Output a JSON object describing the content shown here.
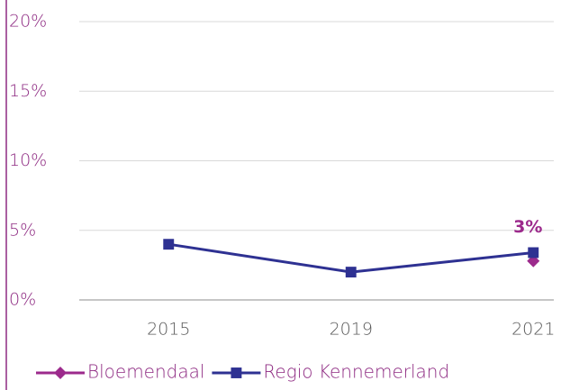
{
  "chart_data": {
    "type": "line",
    "categories": [
      "2015",
      "2019",
      "2021"
    ],
    "series": [
      {
        "name": "Bloemendaal",
        "color": "#9c2a8c",
        "marker": "diamond",
        "values": [
          null,
          null,
          2.8
        ],
        "value_labels": [
          null,
          null,
          "3%"
        ]
      },
      {
        "name": "Regio Kennemerland",
        "color": "#2e3192",
        "marker": "square",
        "values": [
          4,
          2,
          3.4
        ]
      }
    ],
    "ylim": [
      0,
      20
    ],
    "yticks": [
      {
        "value": 0,
        "label": "0%"
      },
      {
        "value": 5,
        "label": "5%"
      },
      {
        "value": 10,
        "label": "10%"
      },
      {
        "value": 15,
        "label": "15%"
      },
      {
        "value": 20,
        "label": "20%"
      }
    ],
    "grid": true,
    "legend": "bottom"
  }
}
